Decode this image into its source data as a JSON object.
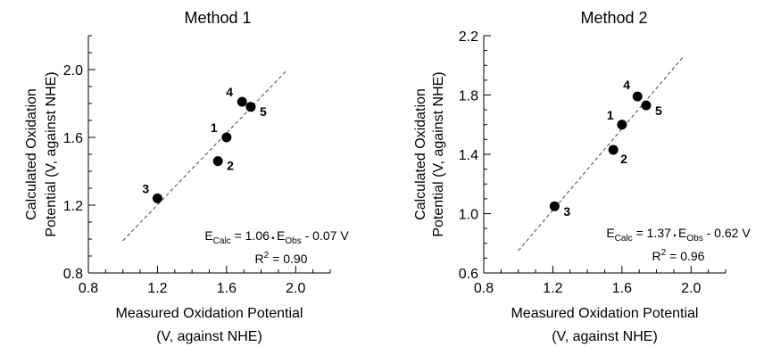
{
  "chart_data": [
    {
      "type": "scatter",
      "title": "Method 1",
      "xlabel": [
        "Measured Oxidation Potential",
        "(V, against NHE)"
      ],
      "ylabel": [
        "Calculated Oxidation",
        "Potential (V, against NHE)"
      ],
      "xlim": [
        0.8,
        2.2
      ],
      "ylim": [
        0.8,
        2.2
      ],
      "xticks": [
        "0.8",
        "1.2",
        "1.6",
        "2.0"
      ],
      "yticks": [
        "0.8",
        "1.2",
        "1.6",
        "2.0"
      ],
      "points": [
        {
          "label": "1",
          "x": 1.6,
          "y": 1.6
        },
        {
          "label": "2",
          "x": 1.55,
          "y": 1.46
        },
        {
          "label": "3",
          "x": 1.2,
          "y": 1.24
        },
        {
          "label": "4",
          "x": 1.69,
          "y": 1.81
        },
        {
          "label": "5",
          "x": 1.74,
          "y": 1.78
        }
      ],
      "fit": {
        "slope": 1.06,
        "intercept": -0.07,
        "x_range": [
          1.0,
          1.95
        ]
      },
      "equation": {
        "lhs": "E",
        "lhs_sub": "Calc",
        "mid": " = 1.06",
        "dot": "•",
        "e": "E",
        "e_sub": "Obs",
        "rest": " - 0.07 V"
      },
      "r2": {
        "prefix": "R",
        "sup": "2",
        "suffix": " = 0.90"
      },
      "grid": false
    },
    {
      "type": "scatter",
      "title": "Method 2",
      "xlabel": [
        "Measured Oxidation Potential",
        "(V, against NHE)"
      ],
      "ylabel": [
        "Calculated Oxidation",
        "Potential (V, against NHE)"
      ],
      "xlim": [
        0.8,
        2.2
      ],
      "ylim": [
        0.6,
        2.2
      ],
      "xticks": [
        "0.8",
        "1.2",
        "1.6",
        "2.0"
      ],
      "yticks": [
        "0.6",
        "1.0",
        "1.4",
        "1.8",
        "2.2"
      ],
      "points": [
        {
          "label": "1",
          "x": 1.6,
          "y": 1.6
        },
        {
          "label": "2",
          "x": 1.55,
          "y": 1.43
        },
        {
          "label": "3",
          "x": 1.21,
          "y": 1.05
        },
        {
          "label": "4",
          "x": 1.69,
          "y": 1.79
        },
        {
          "label": "5",
          "x": 1.74,
          "y": 1.73
        }
      ],
      "fit": {
        "slope": 1.37,
        "intercept": -0.62,
        "x_range": [
          1.0,
          1.96
        ]
      },
      "equation": {
        "lhs": "E",
        "lhs_sub": "Calc",
        "mid": " = 1.37",
        "dot": "•",
        "e": "E",
        "e_sub": "Obs",
        "rest": " - 0.62 V"
      },
      "r2": {
        "prefix": "R",
        "sup": "2",
        "suffix": " = 0.96"
      },
      "grid": false
    }
  ]
}
